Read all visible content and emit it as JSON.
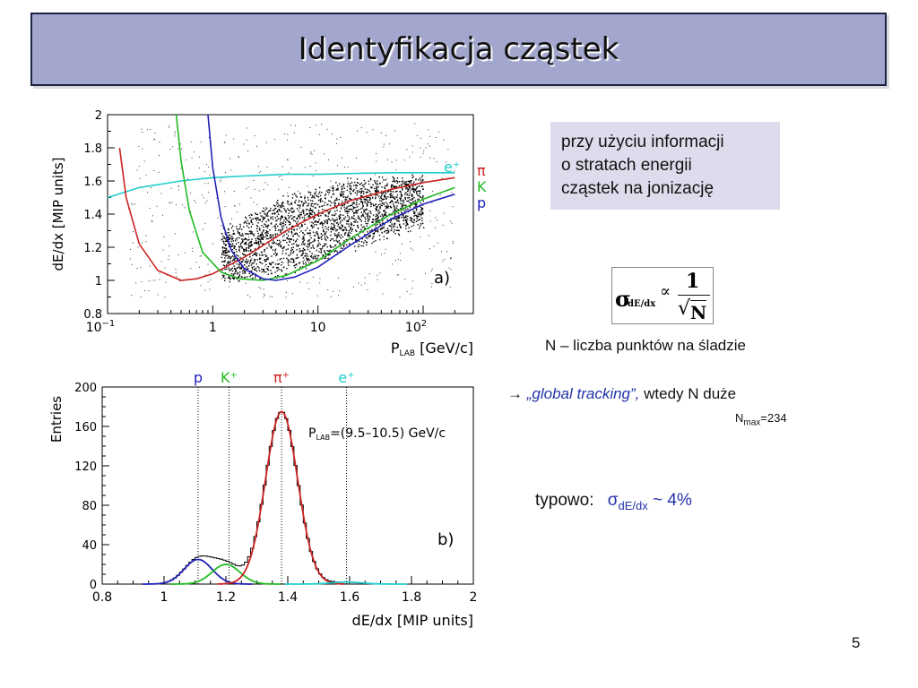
{
  "slide": {
    "title": "Identyfikacja cząstek",
    "page_number": "5"
  },
  "info_box": {
    "line1": "przy użyciu informacji",
    "line2": "o stratach energii",
    "line3": "cząstek na jonizację"
  },
  "formula": {
    "sigma": "σ",
    "sigma_sub": "dE/dx",
    "proportional": "∝",
    "numerator": "1",
    "sqrt_sign": "√",
    "denominator": "N"
  },
  "n_text": "N – liczba punktów na śladzie",
  "global_tracking": {
    "arrow": "→",
    "phrase": "„global tracking”,",
    "rest": "wtedy N duże"
  },
  "nmax": {
    "label": "N",
    "sub": "max",
    "value": "=234"
  },
  "typowo": {
    "label": "typowo:",
    "sigma": "σ",
    "sub": "dE/dx",
    "value": "~ 4%"
  },
  "colors": {
    "title_bg": "#a3a6cd",
    "info_bg": "#dcdcec",
    "pi": "#cc2222",
    "K": "#22bb22",
    "p": "#2222bb",
    "e": "#22cccc",
    "accent_text": "#2233aa"
  },
  "chart_data": [
    {
      "type": "scatter",
      "title": "",
      "panel_label": "a)",
      "xlabel": "P_LAB [GeV/c]",
      "ylabel": "dE/dx [MIP units]",
      "xscale": "log",
      "xlim": [
        0.1,
        300
      ],
      "ylim": [
        0.8,
        2
      ],
      "x_tick_labels": [
        "10⁻¹",
        "1",
        "10",
        "10²"
      ],
      "x_ticks": [
        0.1,
        1,
        10,
        100
      ],
      "y_tick_labels": [
        "0.8",
        "1",
        "1.2",
        "1.4",
        "1.6",
        "1.8",
        "2"
      ],
      "y_ticks": [
        0.8,
        1.0,
        1.2,
        1.4,
        1.6,
        1.8,
        2.0
      ],
      "legend_position": "right",
      "series": [
        {
          "name": "e⁺",
          "color": "#22cccc",
          "x": [
            0.1,
            0.2,
            0.5,
            1,
            2,
            5,
            10,
            20,
            50,
            100,
            200
          ],
          "values": [
            1.5,
            1.56,
            1.6,
            1.62,
            1.63,
            1.64,
            1.64,
            1.645,
            1.65,
            1.65,
            1.65
          ]
        },
        {
          "name": "π⁺",
          "color": "#cc2222",
          "x": [
            0.13,
            0.15,
            0.2,
            0.3,
            0.5,
            0.7,
            1,
            2,
            5,
            10,
            20,
            50,
            100,
            200
          ],
          "values": [
            1.8,
            1.5,
            1.22,
            1.06,
            1.0,
            1.01,
            1.04,
            1.14,
            1.3,
            1.4,
            1.48,
            1.55,
            1.59,
            1.62
          ]
        },
        {
          "name": "K⁺",
          "color": "#22bb22",
          "x": [
            0.45,
            0.5,
            0.6,
            0.8,
            1.2,
            1.8,
            3,
            5,
            10,
            20,
            50,
            100,
            200
          ],
          "values": [
            2.0,
            1.72,
            1.42,
            1.17,
            1.05,
            1.01,
            1.0,
            1.03,
            1.12,
            1.25,
            1.4,
            1.49,
            1.56
          ]
        },
        {
          "name": "p",
          "color": "#2222bb",
          "x": [
            0.9,
            1.0,
            1.2,
            1.5,
            2,
            3,
            4,
            6,
            10,
            20,
            50,
            100,
            200
          ],
          "values": [
            2.0,
            1.68,
            1.38,
            1.18,
            1.07,
            1.01,
            1.0,
            1.02,
            1.08,
            1.21,
            1.37,
            1.46,
            1.52
          ]
        }
      ],
      "dense_band": [
        {
          "x": 1.2,
          "y_low": 1.0,
          "y_high": 1.3
        },
        {
          "x": 5,
          "y_low": 1.05,
          "y_high": 1.5
        },
        {
          "x": 20,
          "y_low": 1.2,
          "y_high": 1.6
        },
        {
          "x": 100,
          "y_low": 1.35,
          "y_high": 1.62
        }
      ]
    },
    {
      "type": "line",
      "title": "",
      "panel_label": "b)",
      "annotation": "P_LAB=(9.5–10.5) GeV/c",
      "xlabel": "dE/dx [MIP units]",
      "ylabel": "Entries",
      "xlim": [
        0.8,
        2
      ],
      "ylim": [
        0,
        200
      ],
      "x_ticks": [
        0.8,
        1.0,
        1.2,
        1.4,
        1.6,
        1.8,
        2.0
      ],
      "x_tick_labels": [
        "0.8",
        "1",
        "1.2",
        "1.4",
        "1.6",
        "1.8",
        "2"
      ],
      "y_ticks": [
        0,
        40,
        80,
        120,
        160,
        200
      ],
      "y_tick_labels": [
        "0",
        "40",
        "80",
        "120",
        "160",
        "200"
      ],
      "markers": [
        {
          "name": "p",
          "x": 1.11,
          "color": "#2222bb"
        },
        {
          "name": "K⁺",
          "x": 1.21,
          "color": "#22bb22"
        },
        {
          "name": "π⁺",
          "x": 1.38,
          "color": "#cc2222"
        },
        {
          "name": "e⁺",
          "x": 1.59,
          "color": "#22cccc"
        }
      ],
      "series": [
        {
          "name": "p",
          "color": "#2222bb",
          "mean": 1.11,
          "amplitude": 25,
          "sigma": 0.045
        },
        {
          "name": "K⁺",
          "color": "#22bb22",
          "mean": 1.2,
          "amplitude": 20,
          "sigma": 0.045
        },
        {
          "name": "π⁺",
          "color": "#cc2222",
          "mean": 1.38,
          "amplitude": 175,
          "sigma": 0.052
        },
        {
          "name": "e⁺",
          "color": "#22cccc",
          "mean": 1.59,
          "amplitude": 2,
          "sigma": 0.05
        }
      ]
    }
  ]
}
